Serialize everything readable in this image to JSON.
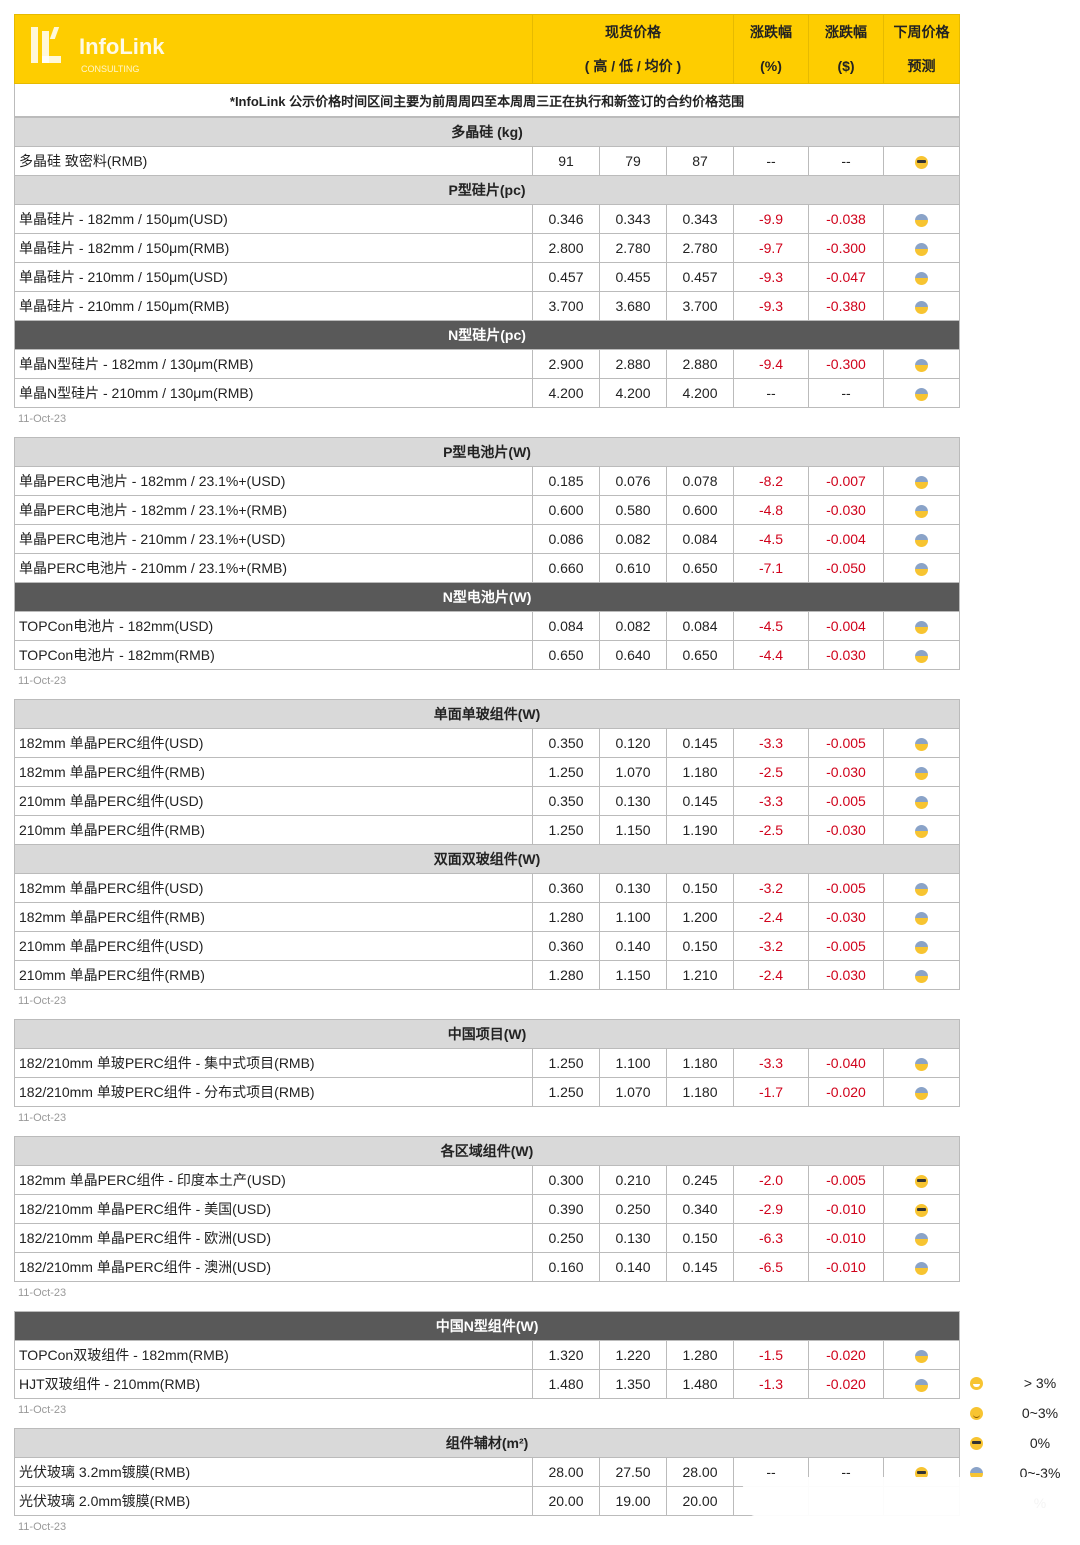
{
  "header": {
    "logo_text": "InfoLink",
    "logo_sub": "CONSULTING",
    "price_col": "现货价格",
    "price_sub": "( 高 / 低 / 均价 )",
    "pct_col": "涨跌幅",
    "pct_unit": "(%)",
    "usd_col": "涨跌幅",
    "usd_unit": "($)",
    "forecast_col": "下周价格",
    "forecast_sub": "预测"
  },
  "note": "*InfoLink 公示价格时间区间主要为前周周四至本周周三正在执行和新签订的合约价格范围",
  "blocks": [
    {
      "date": "11-Oct-23",
      "sections": [
        {
          "title": "多晶硅 (kg)",
          "dark": false,
          "rows": [
            {
              "name": "多晶硅 致密料(RMB)",
              "high": "91",
              "low": "79",
              "avg": "87",
              "pct": "--",
              "usd": "--",
              "icon": "cool"
            }
          ]
        },
        {
          "title": "P型硅片(pc)",
          "dark": false,
          "rows": [
            {
              "name": "单晶硅片 - 182mm / 150μm(USD)",
              "high": "0.346",
              "low": "0.343",
              "avg": "0.343",
              "pct": "-9.9",
              "usd": "-0.038",
              "icon": "fear"
            },
            {
              "name": "单晶硅片 - 182mm / 150μm(RMB)",
              "high": "2.800",
              "low": "2.780",
              "avg": "2.780",
              "pct": "-9.7",
              "usd": "-0.300",
              "icon": "fear"
            },
            {
              "name": "单晶硅片 - 210mm / 150μm(USD)",
              "high": "0.457",
              "low": "0.455",
              "avg": "0.457",
              "pct": "-9.3",
              "usd": "-0.047",
              "icon": "fear"
            },
            {
              "name": "单晶硅片 - 210mm / 150μm(RMB)",
              "high": "3.700",
              "low": "3.680",
              "avg": "3.700",
              "pct": "-9.3",
              "usd": "-0.380",
              "icon": "fear"
            }
          ]
        },
        {
          "title": "N型硅片(pc)",
          "dark": true,
          "rows": [
            {
              "name": "单晶N型硅片 - 182mm / 130μm(RMB)",
              "high": "2.900",
              "low": "2.880",
              "avg": "2.880",
              "pct": "-9.4",
              "usd": "-0.300",
              "icon": "fear"
            },
            {
              "name": "单晶N型硅片 - 210mm / 130μm(RMB)",
              "high": "4.200",
              "low": "4.200",
              "avg": "4.200",
              "pct": "--",
              "usd": "--",
              "icon": "fear"
            }
          ]
        }
      ]
    },
    {
      "date": "11-Oct-23",
      "sections": [
        {
          "title": "P型电池片(W)",
          "dark": false,
          "rows": [
            {
              "name": "单晶PERC电池片 - 182mm / 23.1%+(USD)",
              "high": "0.185",
              "low": "0.076",
              "avg": "0.078",
              "pct": "-8.2",
              "usd": "-0.007",
              "icon": "fear"
            },
            {
              "name": "单晶PERC电池片 - 182mm / 23.1%+(RMB)",
              "high": "0.600",
              "low": "0.580",
              "avg": "0.600",
              "pct": "-4.8",
              "usd": "-0.030",
              "icon": "fear"
            },
            {
              "name": "单晶PERC电池片 - 210mm / 23.1%+(USD)",
              "high": "0.086",
              "low": "0.082",
              "avg": "0.084",
              "pct": "-4.5",
              "usd": "-0.004",
              "icon": "fear"
            },
            {
              "name": "单晶PERC电池片 - 210mm / 23.1%+(RMB)",
              "high": "0.660",
              "low": "0.610",
              "avg": "0.650",
              "pct": "-7.1",
              "usd": "-0.050",
              "icon": "fear"
            }
          ]
        },
        {
          "title": "N型电池片(W)",
          "dark": true,
          "rows": [
            {
              "name": "TOPCon电池片 - 182mm(USD)",
              "high": "0.084",
              "low": "0.082",
              "avg": "0.084",
              "pct": "-4.5",
              "usd": "-0.004",
              "icon": "fear"
            },
            {
              "name": "TOPCon电池片 - 182mm(RMB)",
              "high": "0.650",
              "low": "0.640",
              "avg": "0.650",
              "pct": "-4.4",
              "usd": "-0.030",
              "icon": "fear"
            }
          ]
        }
      ]
    },
    {
      "date": "11-Oct-23",
      "sections": [
        {
          "title": "单面单玻组件(W)",
          "dark": false,
          "rows": [
            {
              "name": "182mm 单晶PERC组件(USD)",
              "high": "0.350",
              "low": "0.120",
              "avg": "0.145",
              "pct": "-3.3",
              "usd": "-0.005",
              "icon": "fear"
            },
            {
              "name": "182mm 单晶PERC组件(RMB)",
              "high": "1.250",
              "low": "1.070",
              "avg": "1.180",
              "pct": "-2.5",
              "usd": "-0.030",
              "icon": "fear"
            },
            {
              "name": "210mm 单晶PERC组件(USD)",
              "high": "0.350",
              "low": "0.130",
              "avg": "0.145",
              "pct": "-3.3",
              "usd": "-0.005",
              "icon": "fear"
            },
            {
              "name": "210mm 单晶PERC组件(RMB)",
              "high": "1.250",
              "low": "1.150",
              "avg": "1.190",
              "pct": "-2.5",
              "usd": "-0.030",
              "icon": "fear"
            }
          ]
        },
        {
          "title": "双面双玻组件(W)",
          "dark": false,
          "rows": [
            {
              "name": "182mm 单晶PERC组件(USD)",
              "high": "0.360",
              "low": "0.130",
              "avg": "0.150",
              "pct": "-3.2",
              "usd": "-0.005",
              "icon": "fear"
            },
            {
              "name": "182mm 单晶PERC组件(RMB)",
              "high": "1.280",
              "low": "1.100",
              "avg": "1.200",
              "pct": "-2.4",
              "usd": "-0.030",
              "icon": "fear"
            },
            {
              "name": "210mm 单晶PERC组件(USD)",
              "high": "0.360",
              "low": "0.140",
              "avg": "0.150",
              "pct": "-3.2",
              "usd": "-0.005",
              "icon": "fear"
            },
            {
              "name": "210mm 单晶PERC组件(RMB)",
              "high": "1.280",
              "low": "1.150",
              "avg": "1.210",
              "pct": "-2.4",
              "usd": "-0.030",
              "icon": "fear"
            }
          ]
        }
      ]
    },
    {
      "date": "11-Oct-23",
      "sections": [
        {
          "title": "中国项目(W)",
          "dark": false,
          "rows": [
            {
              "name": "182/210mm 单玻PERC组件 - 集中式项目(RMB)",
              "high": "1.250",
              "low": "1.100",
              "avg": "1.180",
              "pct": "-3.3",
              "usd": "-0.040",
              "icon": "fear"
            },
            {
              "name": "182/210mm 单玻PERC组件 - 分布式项目(RMB)",
              "high": "1.250",
              "low": "1.070",
              "avg": "1.180",
              "pct": "-1.7",
              "usd": "-0.020",
              "icon": "fear"
            }
          ]
        }
      ]
    },
    {
      "date": "11-Oct-23",
      "sections": [
        {
          "title": "各区域组件(W)",
          "dark": false,
          "rows": [
            {
              "name": "182mm 单晶PERC组件 - 印度本土产(USD)",
              "high": "0.300",
              "low": "0.210",
              "avg": "0.245",
              "pct": "-2.0",
              "usd": "-0.005",
              "icon": "cool"
            },
            {
              "name": "182/210mm 单晶PERC组件 - 美国(USD)",
              "high": "0.390",
              "low": "0.250",
              "avg": "0.340",
              "pct": "-2.9",
              "usd": "-0.010",
              "icon": "cool"
            },
            {
              "name": "182/210mm 单晶PERC组件 - 欧洲(USD)",
              "high": "0.250",
              "low": "0.130",
              "avg": "0.150",
              "pct": "-6.3",
              "usd": "-0.010",
              "icon": "fear"
            },
            {
              "name": "182/210mm 单晶PERC组件 - 澳洲(USD)",
              "high": "0.160",
              "low": "0.140",
              "avg": "0.145",
              "pct": "-6.5",
              "usd": "-0.010",
              "icon": "fear"
            }
          ]
        }
      ]
    },
    {
      "date": "11-Oct-23",
      "sections": [
        {
          "title": "中国N型组件(W)",
          "dark": true,
          "rows": [
            {
              "name": "TOPCon双玻组件 - 182mm(RMB)",
              "high": "1.320",
              "low": "1.220",
              "avg": "1.280",
              "pct": "-1.5",
              "usd": "-0.020",
              "icon": "fear"
            },
            {
              "name": "HJT双玻组件 - 210mm(RMB)",
              "high": "1.480",
              "low": "1.350",
              "avg": "1.480",
              "pct": "-1.3",
              "usd": "-0.020",
              "icon": "fear"
            }
          ]
        }
      ]
    },
    {
      "date": "11-Oct-23",
      "sections": [
        {
          "title": "组件辅材(m²)",
          "dark": false,
          "rows": [
            {
              "name": "光伏玻璃 3.2mm镀膜(RMB)",
              "high": "28.00",
              "low": "27.50",
              "avg": "28.00",
              "pct": "--",
              "usd": "--",
              "icon": "cool"
            },
            {
              "name": "光伏玻璃 2.0mm镀膜(RMB)",
              "high": "20.00",
              "low": "19.00",
              "avg": "20.00",
              "pct": "",
              "usd": "",
              "icon": ""
            }
          ]
        }
      ]
    }
  ],
  "legend": [
    {
      "icon": "grin",
      "label": "> 3%"
    },
    {
      "icon": "smile",
      "label": "0~3%"
    },
    {
      "icon": "cool",
      "label": "0%"
    },
    {
      "icon": "fear",
      "label": "0~-3%"
    },
    {
      "icon": "",
      "label": "%"
    }
  ],
  "colors": {
    "header_yellow": "#fecd00",
    "section_gray": "#d9d9d9",
    "section_dark": "#595959",
    "negative_red": "#d0021b"
  }
}
